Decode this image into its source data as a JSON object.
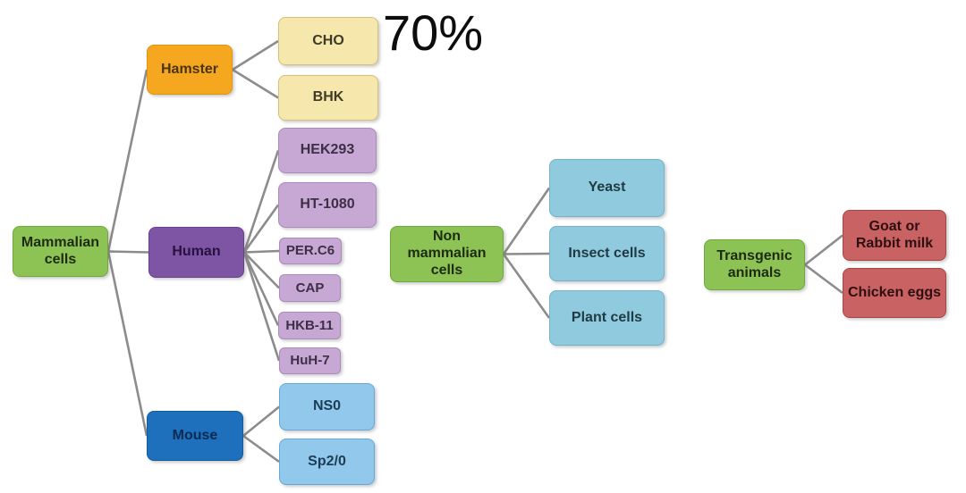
{
  "annotation": {
    "text": "70%",
    "color": "#0d0d0d"
  },
  "diagram": {
    "edge_color": "#8c8c8c",
    "palette": {
      "green": "#8dc355",
      "orange": "#f5a71f",
      "pale_yellow": "#f6e8ac",
      "dark_purple": "#7e54a5",
      "light_purple": "#c7a7d3",
      "dark_blue": "#1e70bc",
      "light_blue": "#92c8eb",
      "cyan_blue": "#90cade",
      "red": "#c96262"
    },
    "nodes": {
      "mammalian_cells": {
        "label": "Mammalian\ncells",
        "fill": "#8dc355",
        "border": "#6fa93c",
        "text": "#1e2b10"
      },
      "hamster": {
        "label": "Hamster",
        "fill": "#f5a71f",
        "border": "#dc9413",
        "text": "#4a3510"
      },
      "cho": {
        "label": "CHO",
        "fill": "#f6e8ac",
        "border": "#d5bf7b",
        "text": "#3f3a28"
      },
      "bhk": {
        "label": "BHK",
        "fill": "#f6e8ac",
        "border": "#d5bf7b",
        "text": "#3f3a28"
      },
      "hek293": {
        "label": "HEK293",
        "fill": "#c7a7d3",
        "border": "#a98cbb",
        "text": "#3c2f46"
      },
      "ht1080": {
        "label": "HT-1080",
        "fill": "#c7a7d3",
        "border": "#a98cbb",
        "text": "#3c2f46"
      },
      "human": {
        "label": "Human",
        "fill": "#7e54a5",
        "border": "#654191",
        "text": "#26123d"
      },
      "per_c6": {
        "label": "PER.C6",
        "fill": "#c7a7d3",
        "border": "#a98cbb",
        "text": "#3c2f46"
      },
      "cap": {
        "label": "CAP",
        "fill": "#c7a7d3",
        "border": "#a98cbb",
        "text": "#3c2f46"
      },
      "hkb_11": {
        "label": "HKB-11",
        "fill": "#c7a7d3",
        "border": "#a98cbb",
        "text": "#3c2f46"
      },
      "huh_7": {
        "label": "HuH-7",
        "fill": "#c7a7d3",
        "border": "#a98cbb",
        "text": "#3c2f46"
      },
      "mouse": {
        "label": "Mouse",
        "fill": "#1e70bc",
        "border": "#155b9c",
        "text": "#0d2b52"
      },
      "ns0": {
        "label": "NS0",
        "fill": "#92c8eb",
        "border": "#67a7d6",
        "text": "#1d3c55"
      },
      "sp2_0": {
        "label": "Sp2/0",
        "fill": "#92c8eb",
        "border": "#67a7d6",
        "text": "#1d3c55"
      },
      "non_mammalian_cells": {
        "label": "Non\nmammalian\ncells",
        "fill": "#8dc355",
        "border": "#6fa93c",
        "text": "#1e2b10"
      },
      "yeast": {
        "label": "Yeast",
        "fill": "#90cade",
        "border": "#79b2c7",
        "text": "#1f3a42"
      },
      "insect_cells": {
        "label": "Insect cells",
        "fill": "#90cade",
        "border": "#79b2c7",
        "text": "#1f3a42"
      },
      "plant_cells": {
        "label": "Plant cells",
        "fill": "#90cade",
        "border": "#79b2c7",
        "text": "#1f3a42"
      },
      "transgenic_animals": {
        "label": "Transgenic\nanimals",
        "fill": "#8dc355",
        "border": "#6fa93c",
        "text": "#1e2b10"
      },
      "goat_rabbit_milk": {
        "label": "Goat or\nRabbit milk",
        "fill": "#c96262",
        "border": "#a34646",
        "text": "#2e0f0f"
      },
      "chicken_eggs": {
        "label": "Chicken eggs",
        "fill": "#c96262",
        "border": "#a34646",
        "text": "#2e0f0f"
      }
    },
    "edges": [
      [
        "mammalian_cells",
        "hamster"
      ],
      [
        "mammalian_cells",
        "human"
      ],
      [
        "mammalian_cells",
        "mouse"
      ],
      [
        "hamster",
        "cho"
      ],
      [
        "hamster",
        "bhk"
      ],
      [
        "human",
        "hek293"
      ],
      [
        "human",
        "ht1080"
      ],
      [
        "human",
        "per_c6"
      ],
      [
        "human",
        "cap"
      ],
      [
        "human",
        "hkb_11"
      ],
      [
        "human",
        "huh_7"
      ],
      [
        "mouse",
        "ns0"
      ],
      [
        "mouse",
        "sp2_0"
      ],
      [
        "non_mammalian_cells",
        "yeast"
      ],
      [
        "non_mammalian_cells",
        "insect_cells"
      ],
      [
        "non_mammalian_cells",
        "plant_cells"
      ],
      [
        "transgenic_animals",
        "goat_rabbit_milk"
      ],
      [
        "transgenic_animals",
        "chicken_eggs"
      ]
    ]
  }
}
